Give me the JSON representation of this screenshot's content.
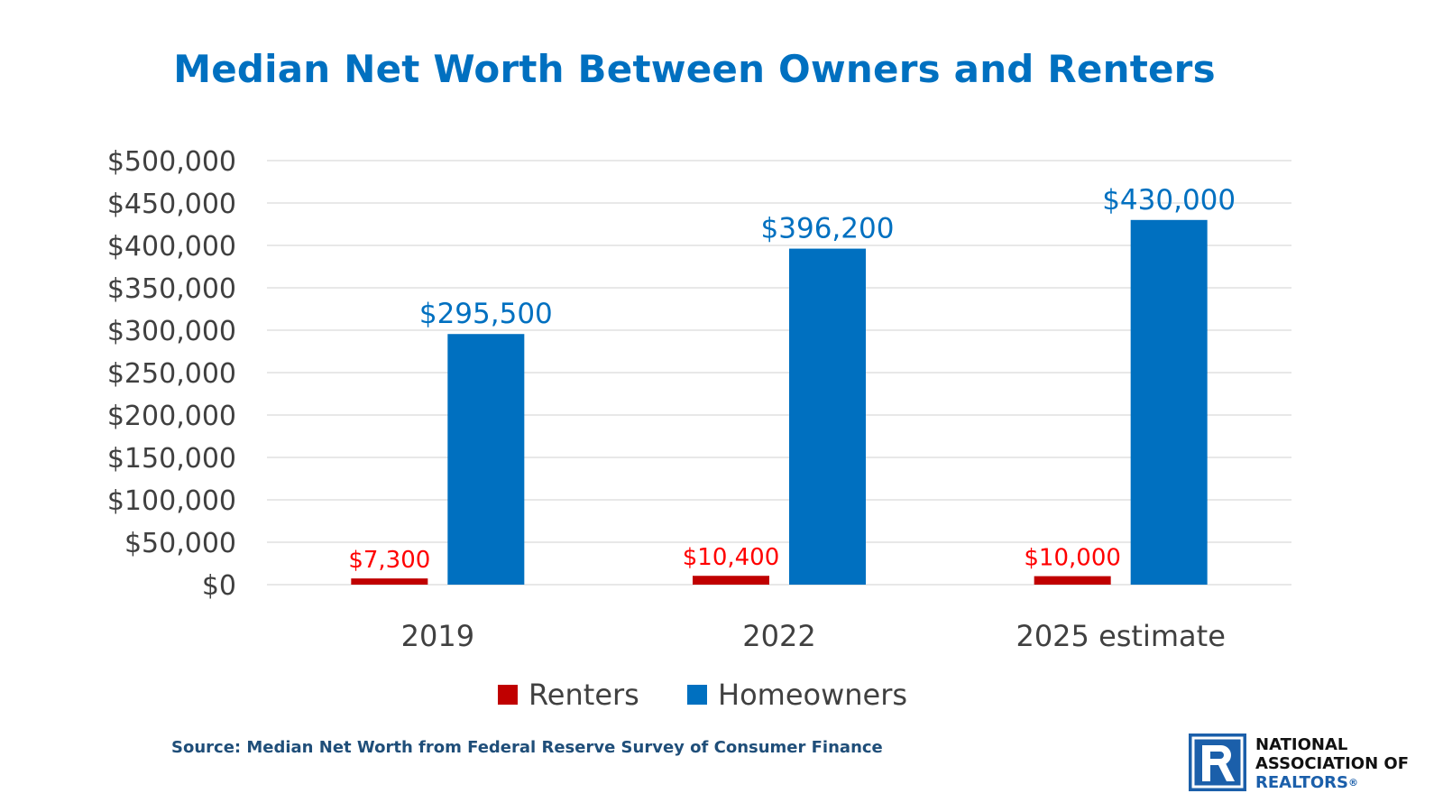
{
  "title": "Median Net Worth Between Owners and Renters",
  "source": "Source: Median Net Worth from Federal Reserve Survey of Consumer Finance",
  "logo": {
    "line1": "NATIONAL",
    "line2": "ASSOCIATION OF",
    "line3": "REALTORS",
    "reg": "®",
    "icon": "realtor-r-logo"
  },
  "colors": {
    "title": "#0070c0",
    "renters": "#c00000",
    "homeowners": "#0070c0",
    "renters_label": "#ff0000",
    "homeowners_label": "#0070c0",
    "axis_text": "#404040",
    "grid": "#d9d9d9",
    "source": "#1f4e79"
  },
  "chart_data": {
    "type": "bar",
    "title": "Median Net Worth Between Owners and Renters",
    "categories": [
      "2019",
      "2022",
      "2025 estimate"
    ],
    "series": [
      {
        "name": "Renters",
        "values": [
          7300,
          10400,
          10000
        ],
        "labels": [
          "$7,300",
          "$10,400",
          "$10,000"
        ]
      },
      {
        "name": "Homeowners",
        "values": [
          295500,
          396200,
          430000
        ],
        "labels": [
          "$295,500",
          "$396,200",
          "$430,000"
        ]
      }
    ],
    "ylim": [
      0,
      500000
    ],
    "yticks": [
      0,
      50000,
      100000,
      150000,
      200000,
      250000,
      300000,
      350000,
      400000,
      450000,
      500000
    ],
    "ytick_labels": [
      "$0",
      "$50,000",
      "$100,000",
      "$150,000",
      "$200,000",
      "$250,000",
      "$300,000",
      "$350,000",
      "$400,000",
      "$450,000",
      "$500,000"
    ],
    "xlabel": "",
    "ylabel": "",
    "grid": true,
    "legend": "bottom"
  }
}
